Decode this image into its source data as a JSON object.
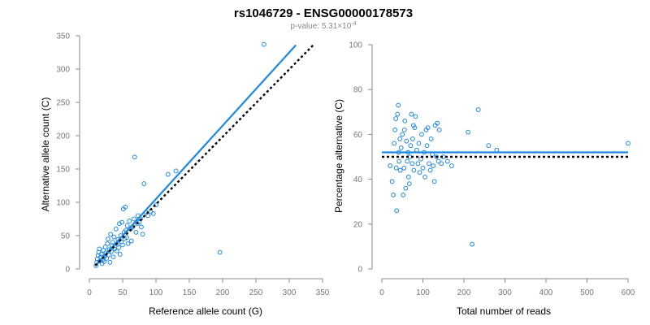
{
  "figure": {
    "title": "rs1046729 - ENSG00000178573",
    "subtitle_prefix": "p-value: 5.31×10",
    "subtitle_exp": "-4"
  },
  "colors": {
    "points": "#1e88e5",
    "fit_line": "#1e88e5",
    "reference_line": "#000000"
  },
  "chart_data": [
    {
      "type": "scatter",
      "xlabel": "Reference allele count (G)",
      "ylabel": "Alternative allele count (C)",
      "xlim": [
        0,
        350
      ],
      "ylim": [
        0,
        350
      ],
      "xticks": [
        0,
        50,
        100,
        150,
        200,
        250,
        300,
        350
      ],
      "yticks": [
        0,
        50,
        100,
        150,
        200,
        250,
        300,
        350
      ],
      "grid": false,
      "lines": [
        {
          "role": "fit",
          "style": "solid",
          "x": [
            9,
            310
          ],
          "y": [
            5,
            336
          ]
        },
        {
          "role": "reference",
          "style": "dotted",
          "x": [
            9,
            336
          ],
          "y": [
            5,
            336
          ]
        }
      ],
      "points": [
        [
          10,
          5
        ],
        [
          11,
          10
        ],
        [
          12,
          15
        ],
        [
          13,
          20
        ],
        [
          14,
          25
        ],
        [
          15,
          30
        ],
        [
          16,
          12
        ],
        [
          17,
          18
        ],
        [
          18,
          22
        ],
        [
          19,
          8
        ],
        [
          20,
          14
        ],
        [
          21,
          28
        ],
        [
          22,
          11
        ],
        [
          23,
          19
        ],
        [
          24,
          33
        ],
        [
          25,
          24
        ],
        [
          26,
          16
        ],
        [
          27,
          38
        ],
        [
          28,
          45
        ],
        [
          29,
          21
        ],
        [
          30,
          29
        ],
        [
          31,
          10
        ],
        [
          32,
          52
        ],
        [
          33,
          26
        ],
        [
          34,
          35
        ],
        [
          35,
          40
        ],
        [
          36,
          18
        ],
        [
          37,
          48
        ],
        [
          38,
          30
        ],
        [
          40,
          60
        ],
        [
          41,
          27
        ],
        [
          42,
          37
        ],
        [
          43,
          44
        ],
        [
          44,
          32
        ],
        [
          45,
          68
        ],
        [
          46,
          22
        ],
        [
          47,
          50
        ],
        [
          48,
          41
        ],
        [
          49,
          70
        ],
        [
          50,
          36
        ],
        [
          51,
          90
        ],
        [
          52,
          55
        ],
        [
          53,
          45
        ],
        [
          54,
          93
        ],
        [
          55,
          58
        ],
        [
          56,
          47
        ],
        [
          57,
          65
        ],
        [
          58,
          38
        ],
        [
          60,
          72
        ],
        [
          62,
          60
        ],
        [
          63,
          42
        ],
        [
          65,
          63
        ],
        [
          67,
          75
        ],
        [
          68,
          168
        ],
        [
          70,
          55
        ],
        [
          72,
          68
        ],
        [
          73,
          80
        ],
        [
          75,
          70
        ],
        [
          77,
          75
        ],
        [
          78,
          63
        ],
        [
          80,
          52
        ],
        [
          82,
          128
        ],
        [
          85,
          85
        ],
        [
          88,
          80
        ],
        [
          92,
          86
        ],
        [
          96,
          83
        ],
        [
          100,
          96
        ],
        [
          118,
          142
        ],
        [
          130,
          147
        ],
        [
          196,
          25
        ],
        [
          262,
          337
        ]
      ]
    },
    {
      "type": "scatter",
      "xlabel": "Total number of reads",
      "ylabel": "Percentage alternative (C)",
      "xlim": [
        0,
        600
      ],
      "ylim": [
        0,
        100
      ],
      "xticks": [
        0,
        100,
        200,
        300,
        400,
        500,
        600
      ],
      "yticks": [
        0,
        20,
        40,
        60,
        80,
        100
      ],
      "grid": false,
      "lines": [
        {
          "role": "fit",
          "style": "solid",
          "x": [
            0,
            600
          ],
          "y": [
            52,
            52
          ]
        },
        {
          "role": "reference",
          "style": "dotted",
          "x": [
            0,
            600
          ],
          "y": [
            50,
            50
          ]
        }
      ],
      "points": [
        [
          20,
          46
        ],
        [
          25,
          39
        ],
        [
          28,
          33
        ],
        [
          30,
          56
        ],
        [
          32,
          62
        ],
        [
          34,
          67
        ],
        [
          35,
          45
        ],
        [
          36,
          26
        ],
        [
          38,
          69
        ],
        [
          40,
          73
        ],
        [
          41,
          52
        ],
        [
          42,
          48
        ],
        [
          44,
          58
        ],
        [
          45,
          44
        ],
        [
          47,
          54
        ],
        [
          50,
          60
        ],
        [
          52,
          33
        ],
        [
          54,
          45
        ],
        [
          55,
          62
        ],
        [
          56,
          66
        ],
        [
          58,
          36
        ],
        [
          60,
          57
        ],
        [
          62,
          48
        ],
        [
          64,
          52
        ],
        [
          65,
          41
        ],
        [
          67,
          38
        ],
        [
          68,
          50
        ],
        [
          70,
          55
        ],
        [
          72,
          69
        ],
        [
          74,
          47
        ],
        [
          75,
          58
        ],
        [
          77,
          64
        ],
        [
          78,
          44
        ],
        [
          80,
          63
        ],
        [
          82,
          68
        ],
        [
          85,
          53
        ],
        [
          88,
          47
        ],
        [
          90,
          56
        ],
        [
          92,
          43
        ],
        [
          95,
          49
        ],
        [
          97,
          60
        ],
        [
          100,
          45
        ],
        [
          103,
          52
        ],
        [
          105,
          41
        ],
        [
          108,
          62
        ],
        [
          110,
          55
        ],
        [
          112,
          63
        ],
        [
          115,
          47
        ],
        [
          118,
          44
        ],
        [
          120,
          58
        ],
        [
          123,
          51
        ],
        [
          125,
          46
        ],
        [
          128,
          39
        ],
        [
          130,
          64
        ],
        [
          133,
          50
        ],
        [
          135,
          65
        ],
        [
          138,
          48
        ],
        [
          140,
          62
        ],
        [
          145,
          47
        ],
        [
          150,
          50
        ],
        [
          160,
          48
        ],
        [
          170,
          46
        ],
        [
          210,
          61
        ],
        [
          220,
          11
        ],
        [
          235,
          71
        ],
        [
          260,
          55
        ],
        [
          280,
          53
        ],
        [
          600,
          56
        ]
      ]
    }
  ]
}
